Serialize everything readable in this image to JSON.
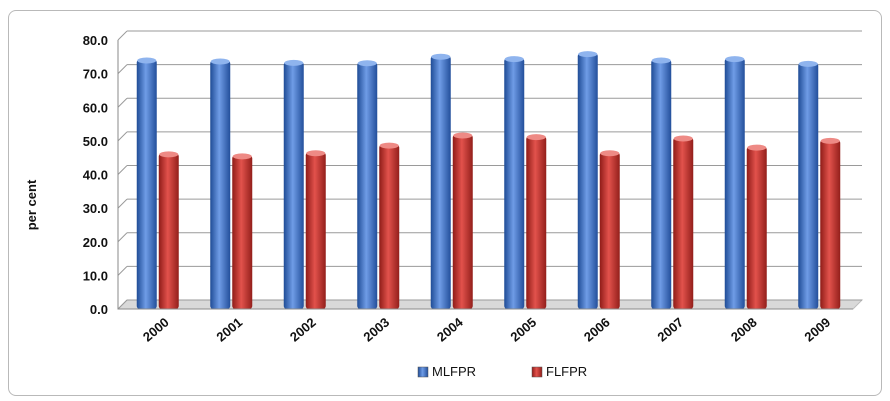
{
  "chart_data": {
    "type": "bar",
    "title": "",
    "xlabel": "",
    "ylabel": "per cent",
    "ylim": [
      0,
      80
    ],
    "yticks": [
      "0.0",
      "10.0",
      "20.0",
      "30.0",
      "40.0",
      "50.0",
      "60.0",
      "70.0",
      "80.0"
    ],
    "categories": [
      "2000",
      "2001",
      "2002",
      "2003",
      "2004",
      "2005",
      "2006",
      "2007",
      "2008",
      "2009"
    ],
    "series": [
      {
        "name": "MLFPR",
        "color": "#3b6fc4",
        "values": [
          74.2,
          73.9,
          73.5,
          73.4,
          75.3,
          74.6,
          76.1,
          74.2,
          74.6,
          73.2
        ]
      },
      {
        "name": "FLFPR",
        "color": "#c0302b",
        "values": [
          46.3,
          45.7,
          46.6,
          48.9,
          51.9,
          51.4,
          46.6,
          51.0,
          48.3,
          50.3
        ]
      }
    ],
    "grid": true,
    "legend": "bottom"
  }
}
